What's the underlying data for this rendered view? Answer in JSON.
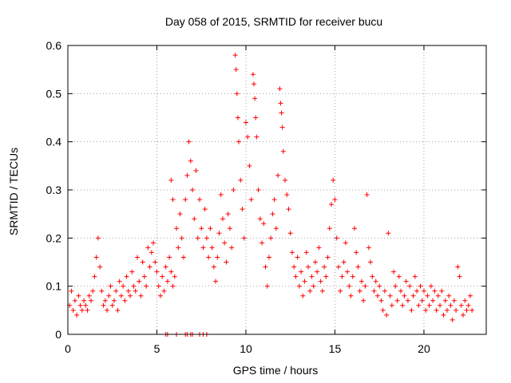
{
  "chart_data": {
    "type": "scatter",
    "title": "Day 058 of 2015, SRMTID for receiver bucu",
    "xlabel": "GPS time / hours",
    "ylabel": "SRMTID / TECUs",
    "xlim": [
      0,
      23.5
    ],
    "ylim": [
      0,
      0.6
    ],
    "xticks": [
      0,
      5,
      10,
      15,
      20
    ],
    "xtick_labels": [
      "0",
      "5",
      "10",
      "15",
      "20"
    ],
    "yticks": [
      0,
      0.1,
      0.2,
      0.3,
      0.4,
      0.5,
      0.6
    ],
    "ytick_labels": [
      "0",
      "0.1",
      "0.2",
      "0.3",
      "0.4",
      "0.5",
      "0.6"
    ],
    "grid": true,
    "marker": "+",
    "color": "#ff0000",
    "series": [
      {
        "name": "SRMTID",
        "points": [
          [
            0.1,
            0.06
          ],
          [
            0.2,
            0.09
          ],
          [
            0.3,
            0.05
          ],
          [
            0.4,
            0.07
          ],
          [
            0.5,
            0.04
          ],
          [
            0.6,
            0.08
          ],
          [
            0.7,
            0.06
          ],
          [
            0.8,
            0.05
          ],
          [
            0.9,
            0.07
          ],
          [
            1.0,
            0.06
          ],
          [
            1.1,
            0.05
          ],
          [
            1.2,
            0.08
          ],
          [
            1.3,
            0.07
          ],
          [
            1.4,
            0.09
          ],
          [
            1.5,
            0.12
          ],
          [
            1.6,
            0.16
          ],
          [
            1.7,
            0.2
          ],
          [
            1.8,
            0.14
          ],
          [
            1.9,
            0.09
          ],
          [
            2.0,
            0.06
          ],
          [
            2.1,
            0.07
          ],
          [
            2.2,
            0.05
          ],
          [
            2.3,
            0.08
          ],
          [
            2.4,
            0.1
          ],
          [
            2.5,
            0.06
          ],
          [
            2.6,
            0.07
          ],
          [
            2.7,
            0.09
          ],
          [
            2.8,
            0.05
          ],
          [
            2.9,
            0.11
          ],
          [
            3.0,
            0.08
          ],
          [
            3.1,
            0.1
          ],
          [
            3.2,
            0.07
          ],
          [
            3.3,
            0.12
          ],
          [
            3.4,
            0.09
          ],
          [
            3.5,
            0.08
          ],
          [
            3.6,
            0.13
          ],
          [
            3.7,
            0.1
          ],
          [
            3.8,
            0.09
          ],
          [
            3.9,
            0.16
          ],
          [
            4.0,
            0.11
          ],
          [
            4.1,
            0.08
          ],
          [
            4.2,
            0.15
          ],
          [
            4.3,
            0.12
          ],
          [
            4.4,
            0.1
          ],
          [
            4.5,
            0.18
          ],
          [
            4.6,
            0.14
          ],
          [
            4.7,
            0.17
          ],
          [
            4.8,
            0.19
          ],
          [
            4.9,
            0.15
          ],
          [
            5.0,
            0.13
          ],
          [
            5.1,
            0.1
          ],
          [
            5.2,
            0.08
          ],
          [
            5.3,
            0.12
          ],
          [
            5.4,
            0.09
          ],
          [
            5.5,
            0.14
          ],
          [
            5.6,
            0.11
          ],
          [
            5.7,
            0.16
          ],
          [
            5.8,
            0.13
          ],
          [
            5.9,
            0.1
          ],
          [
            6.0,
            0.12
          ],
          [
            5.8,
            0.32
          ],
          [
            5.9,
            0.28
          ],
          [
            6.1,
            0.22
          ],
          [
            6.2,
            0.18
          ],
          [
            6.3,
            0.25
          ],
          [
            6.4,
            0.2
          ],
          [
            6.5,
            0.16
          ],
          [
            6.6,
            0.28
          ],
          [
            6.7,
            0.33
          ],
          [
            6.8,
            0.4
          ],
          [
            6.9,
            0.36
          ],
          [
            7.0,
            0.3
          ],
          [
            7.1,
            0.24
          ],
          [
            7.2,
            0.34
          ],
          [
            7.3,
            0.2
          ],
          [
            7.4,
            0.28
          ],
          [
            7.5,
            0.22
          ],
          [
            7.6,
            0.18
          ],
          [
            7.7,
            0.26
          ],
          [
            7.8,
            0.2
          ],
          [
            7.9,
            0.16
          ],
          [
            8.0,
            0.22
          ],
          [
            8.1,
            0.18
          ],
          [
            8.2,
            0.14
          ],
          [
            8.3,
            0.11
          ],
          [
            8.4,
            0.16
          ],
          [
            8.5,
            0.21
          ],
          [
            8.6,
            0.29
          ],
          [
            8.7,
            0.24
          ],
          [
            8.8,
            0.19
          ],
          [
            8.9,
            0.15
          ],
          [
            9.0,
            0.25
          ],
          [
            9.1,
            0.22
          ],
          [
            9.2,
            0.18
          ],
          [
            9.3,
            0.3
          ],
          [
            9.4,
            0.58
          ],
          [
            9.45,
            0.55
          ],
          [
            9.5,
            0.5
          ],
          [
            9.55,
            0.45
          ],
          [
            9.6,
            0.4
          ],
          [
            9.7,
            0.32
          ],
          [
            9.8,
            0.26
          ],
          [
            9.9,
            0.2
          ],
          [
            10.0,
            0.44
          ],
          [
            10.1,
            0.41
          ],
          [
            10.2,
            0.35
          ],
          [
            10.3,
            0.28
          ],
          [
            10.4,
            0.54
          ],
          [
            10.45,
            0.52
          ],
          [
            10.5,
            0.49
          ],
          [
            10.55,
            0.45
          ],
          [
            10.6,
            0.41
          ],
          [
            10.7,
            0.3
          ],
          [
            10.8,
            0.24
          ],
          [
            10.9,
            0.19
          ],
          [
            11.0,
            0.23
          ],
          [
            11.1,
            0.14
          ],
          [
            11.2,
            0.1
          ],
          [
            11.3,
            0.16
          ],
          [
            11.4,
            0.2
          ],
          [
            11.5,
            0.25
          ],
          [
            11.6,
            0.28
          ],
          [
            11.7,
            0.22
          ],
          [
            11.8,
            0.33
          ],
          [
            11.9,
            0.51
          ],
          [
            11.95,
            0.48
          ],
          [
            12.0,
            0.46
          ],
          [
            12.05,
            0.43
          ],
          [
            12.1,
            0.38
          ],
          [
            12.2,
            0.32
          ],
          [
            12.3,
            0.29
          ],
          [
            12.4,
            0.26
          ],
          [
            12.5,
            0.21
          ],
          [
            12.6,
            0.17
          ],
          [
            12.7,
            0.14
          ],
          [
            12.8,
            0.12
          ],
          [
            12.9,
            0.16
          ],
          [
            13.0,
            0.1
          ],
          [
            13.1,
            0.13
          ],
          [
            13.2,
            0.08
          ],
          [
            13.3,
            0.11
          ],
          [
            13.4,
            0.17
          ],
          [
            13.5,
            0.14
          ],
          [
            13.6,
            0.09
          ],
          [
            13.7,
            0.12
          ],
          [
            13.8,
            0.1
          ],
          [
            13.9,
            0.15
          ],
          [
            14.0,
            0.13
          ],
          [
            14.1,
            0.18
          ],
          [
            14.2,
            0.11
          ],
          [
            14.3,
            0.09
          ],
          [
            14.4,
            0.14
          ],
          [
            14.5,
            0.12
          ],
          [
            14.6,
            0.16
          ],
          [
            14.7,
            0.22
          ],
          [
            14.8,
            0.27
          ],
          [
            14.9,
            0.32
          ],
          [
            15.0,
            0.28
          ],
          [
            15.1,
            0.2
          ],
          [
            15.2,
            0.14
          ],
          [
            15.3,
            0.09
          ],
          [
            15.4,
            0.12
          ],
          [
            15.5,
            0.15
          ],
          [
            15.6,
            0.19
          ],
          [
            15.7,
            0.13
          ],
          [
            15.8,
            0.1
          ],
          [
            15.9,
            0.08
          ],
          [
            16.0,
            0.12
          ],
          [
            16.1,
            0.22
          ],
          [
            16.2,
            0.17
          ],
          [
            16.3,
            0.14
          ],
          [
            16.4,
            0.09
          ],
          [
            16.5,
            0.11
          ],
          [
            16.6,
            0.07
          ],
          [
            16.7,
            0.1
          ],
          [
            16.8,
            0.29
          ],
          [
            16.9,
            0.18
          ],
          [
            17.0,
            0.15
          ],
          [
            17.1,
            0.12
          ],
          [
            17.2,
            0.09
          ],
          [
            17.3,
            0.11
          ],
          [
            17.4,
            0.08
          ],
          [
            17.5,
            0.1
          ],
          [
            17.6,
            0.07
          ],
          [
            17.7,
            0.05
          ],
          [
            17.8,
            0.09
          ],
          [
            17.9,
            0.04
          ],
          [
            18.0,
            0.21
          ],
          [
            18.1,
            0.08
          ],
          [
            18.2,
            0.06
          ],
          [
            18.3,
            0.13
          ],
          [
            18.4,
            0.1
          ],
          [
            18.5,
            0.07
          ],
          [
            18.6,
            0.12
          ],
          [
            18.7,
            0.09
          ],
          [
            18.8,
            0.06
          ],
          [
            18.9,
            0.08
          ],
          [
            19.0,
            0.11
          ],
          [
            19.1,
            0.07
          ],
          [
            19.2,
            0.1
          ],
          [
            19.3,
            0.05
          ],
          [
            19.4,
            0.08
          ],
          [
            19.5,
            0.12
          ],
          [
            19.6,
            0.09
          ],
          [
            19.7,
            0.06
          ],
          [
            19.8,
            0.1
          ],
          [
            19.9,
            0.07
          ],
          [
            20.0,
            0.09
          ],
          [
            20.1,
            0.05
          ],
          [
            20.2,
            0.08
          ],
          [
            20.3,
            0.06
          ],
          [
            20.4,
            0.1
          ],
          [
            20.5,
            0.07
          ],
          [
            20.6,
            0.09
          ],
          [
            20.7,
            0.05
          ],
          [
            20.8,
            0.08
          ],
          [
            20.9,
            0.06
          ],
          [
            21.0,
            0.09
          ],
          [
            21.1,
            0.04
          ],
          [
            21.2,
            0.07
          ],
          [
            21.3,
            0.05
          ],
          [
            21.4,
            0.08
          ],
          [
            21.5,
            0.06
          ],
          [
            21.6,
            0.03
          ],
          [
            21.7,
            0.07
          ],
          [
            21.8,
            0.05
          ],
          [
            21.9,
            0.14
          ],
          [
            22.0,
            0.12
          ],
          [
            22.1,
            0.06
          ],
          [
            22.2,
            0.04
          ],
          [
            22.3,
            0.07
          ],
          [
            22.4,
            0.05
          ],
          [
            22.5,
            0.06
          ],
          [
            22.6,
            0.08
          ],
          [
            22.7,
            0.05
          ],
          [
            5.5,
            0.0
          ],
          [
            5.6,
            0.0
          ],
          [
            6.1,
            0.0
          ],
          [
            6.6,
            0.0
          ],
          [
            6.7,
            0.0
          ],
          [
            6.9,
            0.0
          ],
          [
            7.0,
            0.0
          ],
          [
            7.4,
            0.0
          ],
          [
            7.6,
            0.0
          ],
          [
            7.8,
            0.0
          ]
        ]
      }
    ]
  }
}
